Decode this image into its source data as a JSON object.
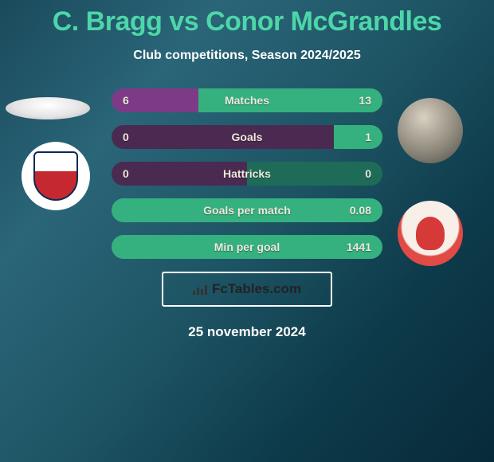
{
  "title": "C. Bragg vs Conor McGrandles",
  "subtitle": "Club competitions, Season 2024/2025",
  "date": "25 november 2024",
  "footer_label": "FcTables.com",
  "colors": {
    "left_track": "#4b2a52",
    "right_track": "#1e6c57",
    "left_fill": "#7d3b87",
    "right_fill": "#35b07f",
    "both_full_left": "#9a44a8",
    "both_full_right": "#3dcf93"
  },
  "rows": [
    {
      "label": "Matches",
      "left_value": "6",
      "right_value": "13",
      "left_pct": 32,
      "right_pct": 68,
      "variant": "split"
    },
    {
      "label": "Goals",
      "left_value": "0",
      "right_value": "1",
      "left_pct": 0,
      "right_pct": 18,
      "variant": "right_only"
    },
    {
      "label": "Hattricks",
      "left_value": "0",
      "right_value": "0",
      "left_pct": 0,
      "right_pct": 0,
      "variant": "none"
    },
    {
      "label": "Goals per match",
      "left_value": "",
      "right_value": "0.08",
      "left_pct": 0,
      "right_pct": 100,
      "variant": "right_full"
    },
    {
      "label": "Min per goal",
      "left_value": "",
      "right_value": "1441",
      "left_pct": 0,
      "right_pct": 100,
      "variant": "right_full"
    }
  ]
}
